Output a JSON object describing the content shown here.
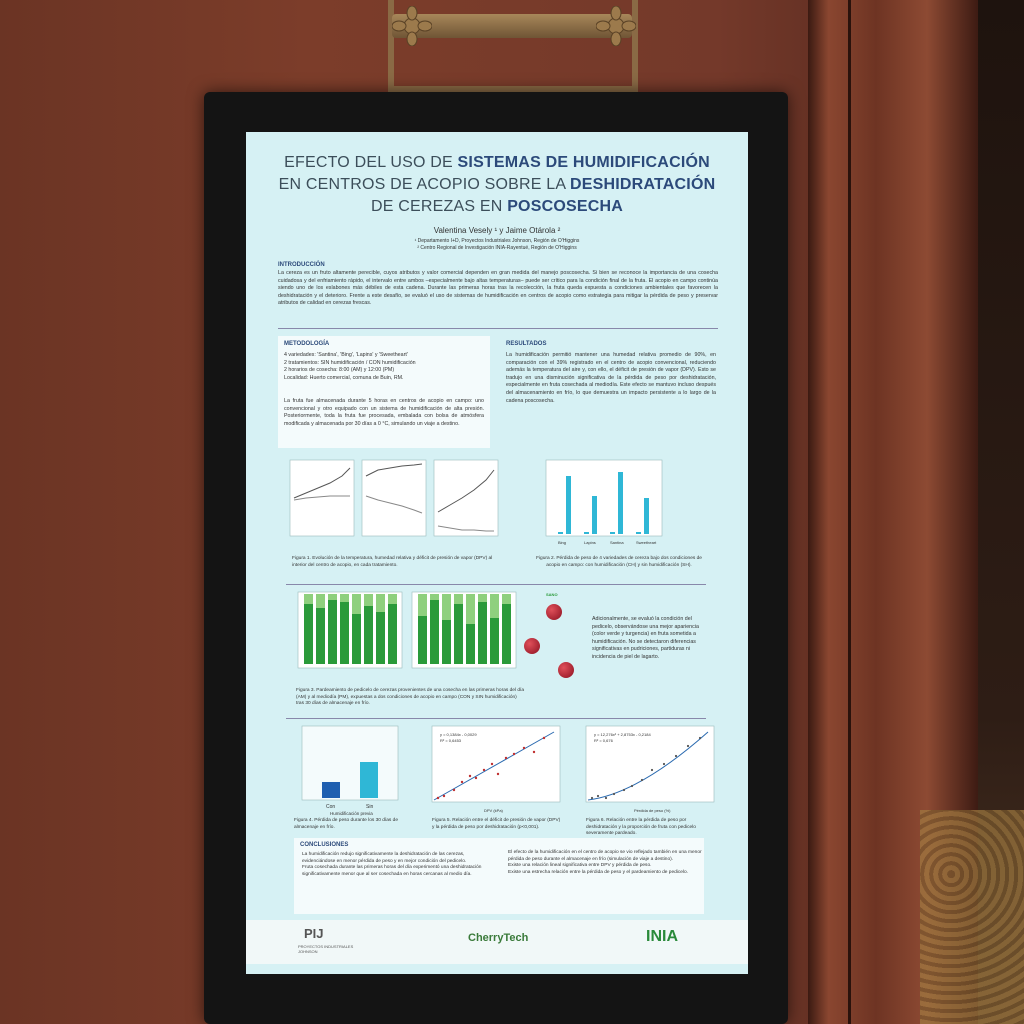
{
  "poster": {
    "title_line1_pre": "EFECTO DEL USO DE ",
    "title_line1_bold": "SISTEMAS DE HUMIDIFICACIÓN",
    "title_line2_pre": "EN CENTROS DE ACOPIO SOBRE LA ",
    "title_line2_bold": "DESHIDRATACIÓN",
    "title_line3_pre": "DE CEREZAS EN ",
    "title_line3_bold": "POSCOSECHA",
    "authors": "Valentina Vesely ¹ y Jaime Otárola ²",
    "affil_1": "¹ Departamento I+D, Proyectos Industriales Johnson, Región de O'Higgins",
    "affil_2": "² Centro Regional de Investigación INIA-Rayentué, Región de O'Higgins"
  },
  "intro": {
    "heading": "INTRODUCCIÓN",
    "text": "La cereza es un fruto altamente perecible, cuyos atributos y valor comercial dependen en gran medida del manejo poscosecha. Si bien se reconoce la importancia de una cosecha cuidadosa y del enfriamiento rápido, el intervalo entre ambos –especialmente bajo altas temperaturas– puede ser crítico para la condición final de la fruta. El acopio en campo continúa siendo uno de los eslabones más débiles de esta cadena. Durante las primeras horas tras la recolección, la fruta queda expuesta a condiciones ambientales que favorecen la deshidratación y el deterioro. Frente a este desafío, se evaluó el uso de sistemas de humidificación en centros de acopio como estrategia para mitigar la pérdida de peso y preservar atributos de calidad en cerezas frescas."
  },
  "method": {
    "heading": "METODOLOGÍA",
    "line1": "4 variedades: 'Santina', 'Bing', 'Lapins' y 'Sweetheart'",
    "line2": "2 tratamientos: SIN humidificación / CON humidificación",
    "line3": "2 horarios de cosecha: 8:00 (AM) y 12:00 (PM)",
    "line4": "Localidad: Huerto comercial, comuna de Buin, RM.",
    "para": "La fruta fue almacenada durante 5 horas en centros de acopio en campo: uno convencional y otro equipado con un sistema de humidificación de alta presión. Posteriormente, toda la fruta fue procesada, embalada con bolsa de atmósfera modificada y almacenada por 30 días a 0 °C, simulando un viaje a destino."
  },
  "results": {
    "heading": "RESULTADOS",
    "text": "La humidificación permitió mantener una humedad relativa promedio de 90%, en comparación con el 39% registrado en el centro de acopio convencional, reduciendo además la temperatura del aire y, con ello, el déficit de presión de vapor (DPV). Esto se tradujo en una disminución significativa de la pérdida de peso por deshidratación, especialmente en fruta cosechada al mediodía. Este efecto se mantuvo incluso después del almacenamiento en frío, lo que demuestra un impacto persistente a lo largo de la cadena poscosecha.",
    "pedicel_text": "Adicionalmente, se evaluó la condición del pedicelo, observándose una mejor apariencia (color verde y turgencia) en fruta sometida a humidificación. No se detectaron diferencias significativas en pudriciones, partiduras ni incidencia de piel de lagarto."
  },
  "figures": {
    "fig1": "Figura 1. Evolución de la temperatura, humedad relativa y déficit de presión de vapor (DPV) al interior del centro de acopio, en cada tratamiento.",
    "fig2": "Figura 2. Pérdida de peso de 4 variedades de cereza bajo dos condiciones de acopio en campo: con humidificación (CH) y sin humidificación (SH).",
    "fig3": "Figura 3. Pardeamiento de pedicelo de cerezas provenientes de una cosecha en las primeras horas del día (AM) y al mediodía (PM), expuestas a dos condiciones de acopio en campo (CON y SIN humidificación) tras 30 días de almacenaje en frío.",
    "fig4": "Figura 4. Pérdida de peso durante los 30 días de almacenaje en frío.",
    "fig5": "Figura 5. Relación entre el déficit de presión de vapor (DPV) y la pérdida de peso por deshidratación (p<0,001).",
    "fig6": "Figura 6. Relación entre la pérdida de peso por deshidratación y la proporción de fruta con pedicelo severamente pardeado.",
    "fig4_x_con": "Con",
    "fig4_x_sin": "Sin",
    "fig4_xlabel": "Humidificación previa",
    "fig4_ylabel": "pérdida de peso (%)",
    "fig5_eq": "y = 0,1384x - 0,0029",
    "fig5_r2": "R² = 0,6453",
    "fig5_xlabel": "DPV (kPa)",
    "fig6_eq": "y = 12,276x² + 2,8753x - 0,2184",
    "fig6_r2": "R² = 0,676",
    "fig6_xlabel": "Pérdida de peso (%)",
    "label_sano": "SANO",
    "label_verde": "VERDE",
    "label_deshidratacion": "DESHIDRATACIÓN",
    "label_medio": "MEDIA",
    "label_severa": "DESHIDRATACIÓN SEVERA",
    "fig2_varieties": [
      "Bing",
      "Lapins",
      "Santina",
      "Sweetheart"
    ]
  },
  "conclusions": {
    "heading": "CONCLUSIONES",
    "left_1": "La humidificación redujo significativamente la deshidratación de las cerezas, evidenciándose en menor pérdida de peso y en mejor condición del pedicelo.",
    "left_2": "Fruta cosechada durante las primeras horas del día experimentó una deshidratación significativamente menor que al ser cosechada en horas cercanas al medio día.",
    "right_1": "El efecto de la humidificación en el centro de acopio se vio reflejado también en una menor pérdida de peso durante el almacenaje en frío (simulación de viaje a destino).",
    "right_2": "Existe una relación lineal significativa entre DPV y pérdida de peso.",
    "right_3": "Existe una estrecha relación entre la pérdida de peso y el pardeamiento de pedicelo."
  },
  "logos": {
    "pij": "PIJ",
    "pij_sub1": "PROYECTOS INDUSTRIALES",
    "pij_sub2": "JOHNSON",
    "cherry": "CherryTech",
    "inia": "INIA"
  },
  "colors": {
    "title_bold": "#2c4a7a",
    "screen_bg": "#d6f1f4",
    "bar_cyan": "#2fb7d6",
    "bar_blue": "#1f5fb0",
    "green_dark": "#2a9a3a",
    "green_light": "#8fd07e",
    "wall": "#74392a"
  }
}
